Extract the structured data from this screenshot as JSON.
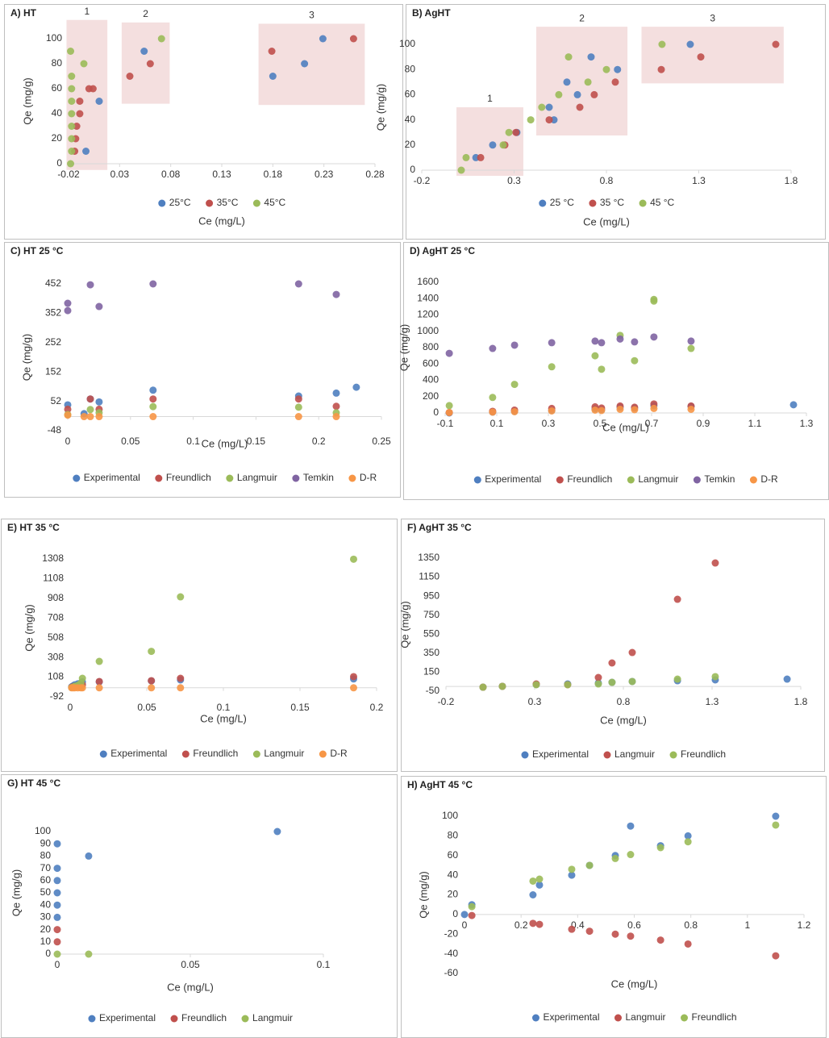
{
  "chart_data": [
    {
      "type": "scatter",
      "title": "A) HT",
      "x_label": "Ce (mg/L)",
      "y_label": "Qe (mg/g)",
      "xlim": [
        -0.02,
        0.28
      ],
      "xticks": [
        -0.02,
        0.03,
        0.08,
        0.13,
        0.18,
        0.23,
        0.28
      ],
      "ylim": [
        0,
        100
      ],
      "yticks": [
        0,
        20,
        40,
        60,
        80,
        100
      ],
      "grid": false,
      "legend": "bottom",
      "regions": [
        {
          "label": "1",
          "x": [
            -0.022,
            0.018
          ],
          "y": [
            -5,
            115
          ]
        },
        {
          "label": "2",
          "x": [
            0.032,
            0.079
          ],
          "y": [
            48,
            113
          ]
        },
        {
          "label": "3",
          "x": [
            0.166,
            0.27
          ],
          "y": [
            47,
            112
          ]
        }
      ],
      "series": [
        {
          "name": "25°C",
          "color": "#4f7fc0",
          "x": [
            -0.003,
            0.01,
            0.054,
            0.18,
            0.211,
            0.229
          ],
          "values": [
            10,
            50,
            90,
            70,
            80,
            100
          ]
        },
        {
          "name": "35°C",
          "color": "#c0504d",
          "x": [
            -0.014,
            -0.013,
            -0.012,
            -0.009,
            -0.009,
            0.0,
            0.004,
            0.04,
            0.06,
            0.179,
            0.259
          ],
          "values": [
            10,
            20,
            30,
            40,
            50,
            60,
            60,
            70,
            80,
            90,
            100
          ]
        },
        {
          "name": "45°C",
          "color": "#9bbb59",
          "x": [
            -0.018,
            -0.017,
            -0.017,
            -0.017,
            -0.017,
            -0.017,
            -0.017,
            -0.017,
            -0.005,
            -0.018,
            0.071
          ],
          "values": [
            0,
            10,
            20,
            30,
            40,
            50,
            60,
            70,
            80,
            90,
            100
          ]
        }
      ]
    },
    {
      "type": "scatter",
      "title": "B) AgHT",
      "x_label": "Ce (mg/L)",
      "y_label": "Qe (mg/g)",
      "xlim": [
        -0.2,
        1.8
      ],
      "xticks": [
        -0.2,
        0.3,
        0.8,
        1.3,
        1.8
      ],
      "ylim": [
        0,
        100
      ],
      "yticks": [
        0,
        20,
        40,
        60,
        80,
        100
      ],
      "grid": false,
      "legend": "bottom",
      "regions": [
        {
          "label": "1",
          "x": [
            -0.012,
            0.35
          ],
          "y": [
            -4.5,
            50
          ]
        },
        {
          "label": "2",
          "x": [
            0.42,
            0.914
          ],
          "y": [
            27.6,
            114
          ]
        },
        {
          "label": "3",
          "x": [
            0.99,
            1.76
          ],
          "y": [
            69,
            114
          ]
        }
      ],
      "series": [
        {
          "name": "25 °C",
          "color": "#4f7fc0",
          "x": [
            0.093,
            0.184,
            0.315,
            0.49,
            0.516,
            0.586,
            0.643,
            0.717,
            0.86,
            1.254
          ],
          "values": [
            10,
            20,
            30,
            50,
            40,
            70,
            60,
            90,
            80,
            100
          ]
        },
        {
          "name": "35 °C",
          "color": "#c0504d",
          "x": [
            0.119,
            0.25,
            0.31,
            0.49,
            0.656,
            0.734,
            0.848,
            1.097,
            1.311,
            1.717
          ],
          "values": [
            10,
            20,
            30,
            40,
            50,
            60,
            70,
            80,
            90,
            100
          ]
        },
        {
          "name": "45 °C",
          "color": "#9bbb59",
          "x": [
            0.014,
            0.04,
            0.241,
            0.272,
            0.39,
            0.45,
            0.542,
            0.7,
            0.8,
            0.595,
            1.101
          ],
          "values": [
            0,
            10,
            20,
            30,
            40,
            50,
            60,
            70,
            80,
            90,
            100
          ]
        }
      ]
    },
    {
      "type": "scatter",
      "title": "C) HT 25 °C",
      "x_label": "Ce (mg/L)",
      "y_label": "Qe (mg/g)",
      "xlim": [
        0,
        0.25
      ],
      "xticks": [
        0,
        0.05,
        0.1,
        0.15,
        0.2,
        0.25
      ],
      "ylim": [
        -48,
        452
      ],
      "yticks": [
        -48,
        52,
        152,
        252,
        352,
        452
      ],
      "grid": false,
      "legend": "bottom",
      "series": [
        {
          "name": "Experimental",
          "color": "#4f7fc0",
          "x": [
            0,
            0.013,
            0.018,
            0.025,
            0.068,
            0.184,
            0.214,
            0.23
          ],
          "values": [
            40,
            10,
            60,
            50,
            90,
            70,
            80,
            100
          ]
        },
        {
          "name": "Freundlich",
          "color": "#c0504d",
          "x": [
            0,
            0.018,
            0.025,
            0.068,
            0.184,
            0.214
          ],
          "values": [
            25,
            60,
            25,
            60,
            60,
            35
          ]
        },
        {
          "name": "Langmuir",
          "color": "#9bbb59",
          "x": [
            0,
            0.018,
            0.025,
            0.068,
            0.184,
            0.214
          ],
          "values": [
            7,
            24,
            13,
            34,
            32,
            13
          ]
        },
        {
          "name": "Temkin",
          "color": "#8064a2",
          "x": [
            0,
            0,
            0.018,
            0.025,
            0.068,
            0.184,
            0.214
          ],
          "values": [
            386,
            361,
            449,
            375,
            452,
            452,
            416
          ]
        },
        {
          "name": "D-R",
          "color": "#f79646",
          "x": [
            0,
            0.013,
            0.018,
            0.025,
            0.068,
            0.184,
            0.214
          ],
          "values": [
            5,
            0,
            0,
            0,
            0,
            0,
            0
          ]
        }
      ]
    },
    {
      "type": "scatter",
      "title": "D) AgHT 25 °C",
      "x_label": "Ce (mg/L)",
      "y_label": "Qe (mg/g)",
      "xlim": [
        -0.1,
        1.3
      ],
      "xticks": [
        -0.1,
        0.1,
        0.3,
        0.5,
        0.7,
        0.9,
        1.1,
        1.3
      ],
      "ylim": [
        0,
        1600
      ],
      "yticks": [
        0,
        200,
        400,
        600,
        800,
        1000,
        1200,
        1400,
        1600
      ],
      "grid": false,
      "legend": "bottom",
      "series": [
        {
          "name": "Experimental",
          "color": "#4f7fc0",
          "x": [
            -0.084,
            0.084,
            0.169,
            0.313,
            0.481,
            0.506,
            0.578,
            0.634,
            0.709,
            0.853,
            1.25
          ],
          "values": [
            0,
            10,
            20,
            30,
            50,
            40,
            70,
            60,
            90,
            80,
            100
          ]
        },
        {
          "name": "Freundlich",
          "color": "#c0504d",
          "x": [
            -0.084,
            0.084,
            0.169,
            0.313,
            0.481,
            0.506,
            0.578,
            0.634,
            0.709,
            0.853
          ],
          "values": [
            5,
            20,
            35,
            55,
            75,
            60,
            85,
            70,
            110,
            85
          ]
        },
        {
          "name": "Langmuir",
          "color": "#9bbb59",
          "x": [
            -0.084,
            0.084,
            0.169,
            0.313,
            0.481,
            0.506,
            0.578,
            0.634,
            0.709,
            0.709,
            0.853
          ],
          "values": [
            90,
            190,
            350,
            565,
            700,
            535,
            950,
            640,
            1390,
            1370,
            790
          ]
        },
        {
          "name": "Temkin",
          "color": "#8064a2",
          "x": [
            -0.084,
            0.084,
            0.169,
            0.313,
            0.481,
            0.506,
            0.578,
            0.634,
            0.709,
            0.853
          ],
          "values": [
            730,
            790,
            830,
            860,
            880,
            860,
            905,
            870,
            930,
            880
          ]
        },
        {
          "name": "D-R",
          "color": "#f79646",
          "x": [
            -0.084,
            0.084,
            0.169,
            0.313,
            0.481,
            0.506,
            0.578,
            0.634,
            0.709,
            0.853
          ],
          "values": [
            5,
            10,
            15,
            25,
            35,
            30,
            45,
            40,
            55,
            45
          ]
        }
      ]
    },
    {
      "type": "scatter",
      "title": "E) HT 35 °C",
      "x_label": "Ce (mg/L)",
      "y_label": "Qe (mg/g)",
      "xlim": [
        0,
        0.2
      ],
      "xticks": [
        0,
        0.05,
        0.1,
        0.15,
        0.2
      ],
      "ylim": [
        -92,
        1308
      ],
      "yticks": [
        -92,
        108,
        308,
        508,
        708,
        908,
        1108,
        1308
      ],
      "grid": false,
      "legend": "bottom",
      "series": [
        {
          "name": "Experimental",
          "color": "#4f7fc0",
          "x": [
            0.001,
            0.002,
            0.003,
            0.005,
            0.007,
            0.008,
            0.019,
            0.053,
            0.072,
            0.185
          ],
          "values": [
            10,
            20,
            30,
            40,
            50,
            60,
            60,
            70,
            80,
            90
          ]
        },
        {
          "name": "Freundlich",
          "color": "#c0504d",
          "x": [
            0.001,
            0.002,
            0.003,
            0.005,
            0.007,
            0.008,
            0.019,
            0.053,
            0.072,
            0.185
          ],
          "values": [
            5,
            10,
            15,
            20,
            25,
            30,
            64,
            72,
            96,
            113
          ]
        },
        {
          "name": "Langmuir",
          "color": "#9bbb59",
          "x": [
            0.001,
            0.002,
            0.003,
            0.005,
            0.007,
            0.008,
            0.019,
            0.053,
            0.072,
            0.185
          ],
          "values": [
            2,
            5,
            15,
            25,
            47,
            96,
            268,
            370,
            923,
            1305
          ]
        },
        {
          "name": "D-R",
          "color": "#f79646",
          "x": [
            0.001,
            0.002,
            0.003,
            0.005,
            0.007,
            0.008,
            0.019,
            0.053,
            0.072,
            0.185
          ],
          "values": [
            0,
            0,
            0,
            0,
            0,
            0,
            0,
            0,
            0,
            0
          ]
        }
      ]
    },
    {
      "type": "scatter",
      "title": "F) AgHT 35 °C",
      "x_label": "Ce (mg/L)",
      "y_label": "Qe (mg/g)",
      "xlim": [
        -0.2,
        1.8
      ],
      "xticks": [
        -0.2,
        0.3,
        0.8,
        1.3,
        1.8
      ],
      "ylim": [
        -50,
        1350
      ],
      "yticks": [
        -50,
        150,
        350,
        550,
        750,
        950,
        1150,
        1350
      ],
      "grid": false,
      "legend": "bottom",
      "series": [
        {
          "name": "Experimental",
          "color": "#4f7fc0",
          "x": [
            0.009,
            0.118,
            0.309,
            0.486,
            0.659,
            0.736,
            0.85,
            1.105,
            1.318,
            1.723
          ],
          "values": [
            -8,
            1,
            20,
            26,
            35,
            43,
            52,
            60,
            69,
            77
          ]
        },
        {
          "name": "Langmuir",
          "color": "#c0504d",
          "x": [
            0.009,
            0.118,
            0.309,
            0.486,
            0.659,
            0.736,
            0.85,
            1.105,
            1.318
          ],
          "values": [
            -8,
            1,
            26,
            18,
            94,
            247,
            357,
            917,
            1299
          ]
        },
        {
          "name": "Freundlich",
          "color": "#9bbb59",
          "x": [
            0.009,
            0.118,
            0.309,
            0.486,
            0.659,
            0.736,
            0.85,
            1.105,
            1.318
          ],
          "values": [
            -8,
            1,
            18,
            18,
            26,
            43,
            52,
            77,
            103
          ]
        }
      ]
    },
    {
      "type": "scatter",
      "title": "G) HT 45 °C",
      "x_label": "Ce (mg/L)",
      "y_label": "Qe (mg/g)",
      "xlim": [
        0,
        0.1
      ],
      "xticks": [
        0,
        0.05,
        0.1
      ],
      "ylim": [
        0,
        100
      ],
      "yticks": [
        0,
        10,
        20,
        30,
        40,
        50,
        60,
        70,
        80,
        90,
        100
      ],
      "grid": false,
      "legend": "bottom",
      "series": [
        {
          "name": "Experimental",
          "color": "#4f7fc0",
          "x": [
            0,
            0,
            0,
            0,
            0,
            0,
            0.0118,
            0.0827
          ],
          "values": [
            90,
            70,
            60,
            50,
            40,
            30,
            80,
            100
          ]
        },
        {
          "name": "Freundlich",
          "color": "#c0504d",
          "x": [
            0,
            0
          ],
          "values": [
            20,
            10
          ]
        },
        {
          "name": "Langmuir",
          "color": "#9bbb59",
          "x": [
            0,
            0.0118
          ],
          "values": [
            0,
            0
          ]
        }
      ]
    },
    {
      "type": "scatter",
      "title": "H) AgHT 45 °C",
      "x_label": "Ce (mg/L)",
      "y_label": "Qe (mg/g)",
      "xlim": [
        0,
        1.2
      ],
      "xticks": [
        0,
        0.2,
        0.4,
        0.6,
        0.8,
        1,
        1.2
      ],
      "ylim": [
        -60,
        100
      ],
      "yticks": [
        -60,
        -40,
        -20,
        0,
        20,
        40,
        60,
        80,
        100
      ],
      "grid": false,
      "legend": "bottom",
      "series": [
        {
          "name": "Experimental",
          "color": "#4f7fc0",
          "x": [
            0,
            0.026,
            0.242,
            0.265,
            0.379,
            0.442,
            0.533,
            0.587,
            0.693,
            0.79,
            1.1
          ],
          "values": [
            0,
            10,
            20,
            30,
            40,
            50,
            60,
            90,
            70,
            80,
            100
          ]
        },
        {
          "name": "Langmuir",
          "color": "#c0504d",
          "x": [
            0.026,
            0.242,
            0.265,
            0.379,
            0.442,
            0.533,
            0.587,
            0.693,
            0.79,
            1.1
          ],
          "values": [
            -1,
            -9,
            -10,
            -15,
            -17,
            -20,
            -22,
            -26,
            -30,
            -42
          ]
        },
        {
          "name": "Freundlich",
          "color": "#9bbb59",
          "x": [
            0.026,
            0.242,
            0.265,
            0.379,
            0.442,
            0.533,
            0.587,
            0.693,
            0.79,
            1.1
          ],
          "values": [
            8,
            34,
            36,
            46,
            50,
            57,
            61,
            68,
            74,
            91
          ]
        }
      ]
    }
  ]
}
